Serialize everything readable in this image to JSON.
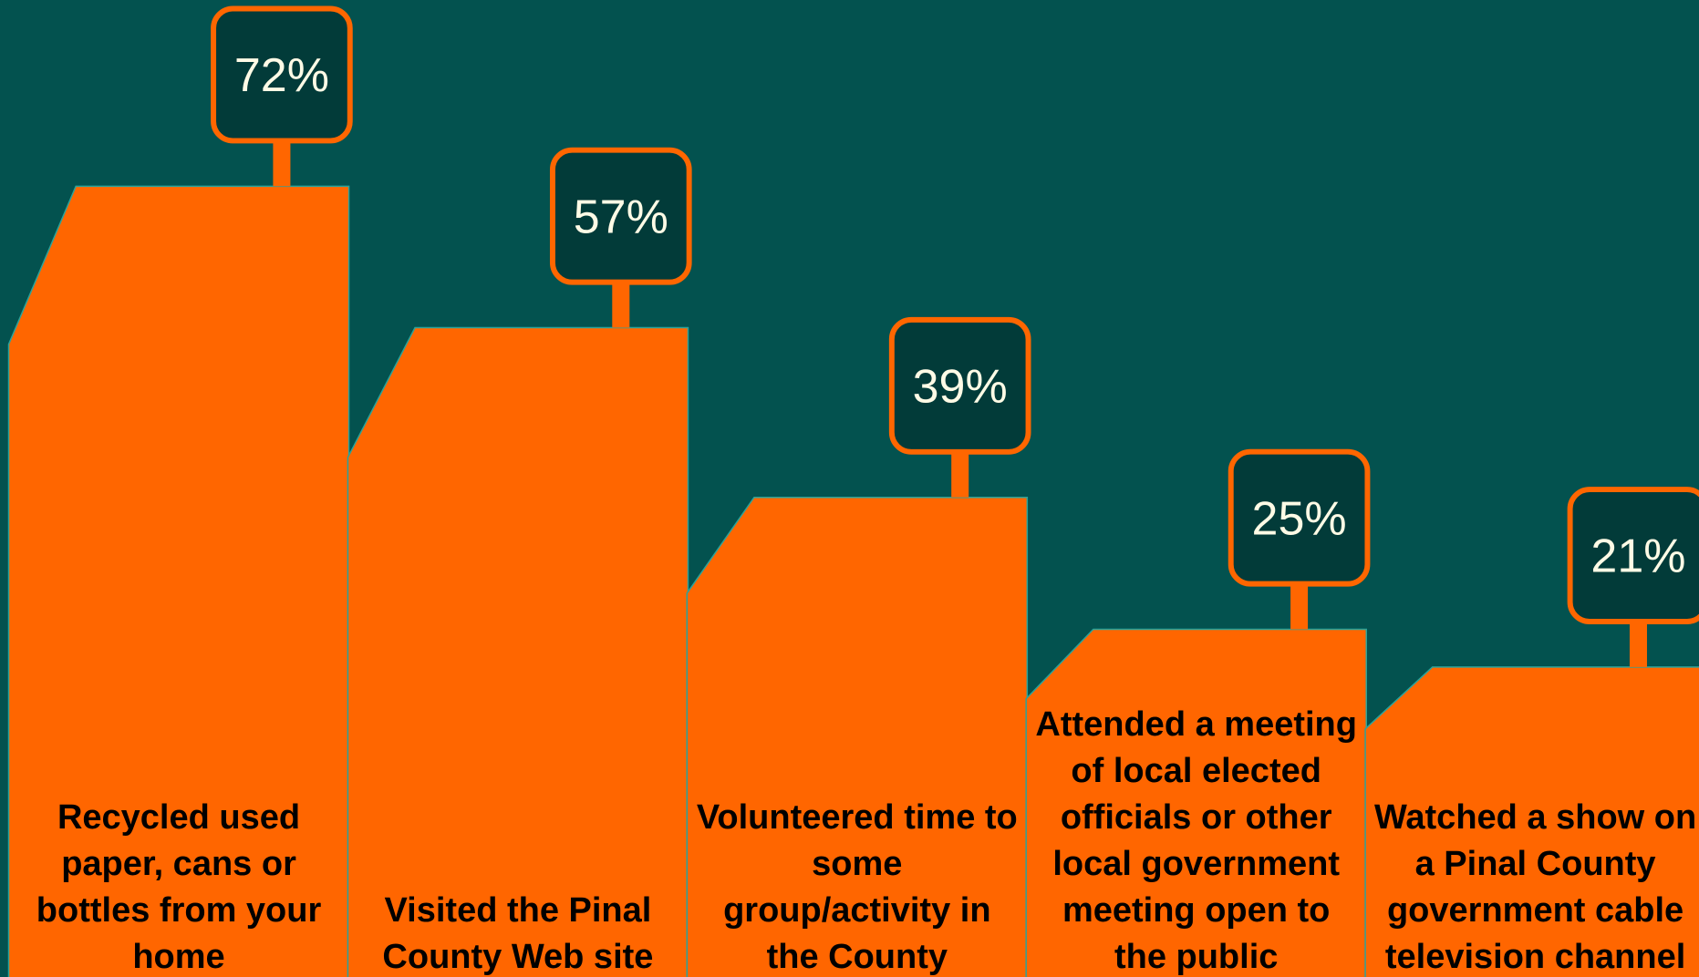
{
  "chart_data": {
    "type": "bar",
    "categories": [
      "Recycled used paper, cans or bottles from your home",
      "Visited the Pinal County Web site",
      "Volunteered time to some group/activity in the County",
      "Attended a meeting of local elected officials or other local government meeting open to the public",
      "Watched a show on a Pinal County government cable television channel"
    ],
    "values": [
      72,
      57,
      39,
      25,
      21
    ],
    "value_labels": [
      "72%",
      "57%",
      "39%",
      "25%",
      "21%"
    ],
    "color": "#ff6600"
  }
}
